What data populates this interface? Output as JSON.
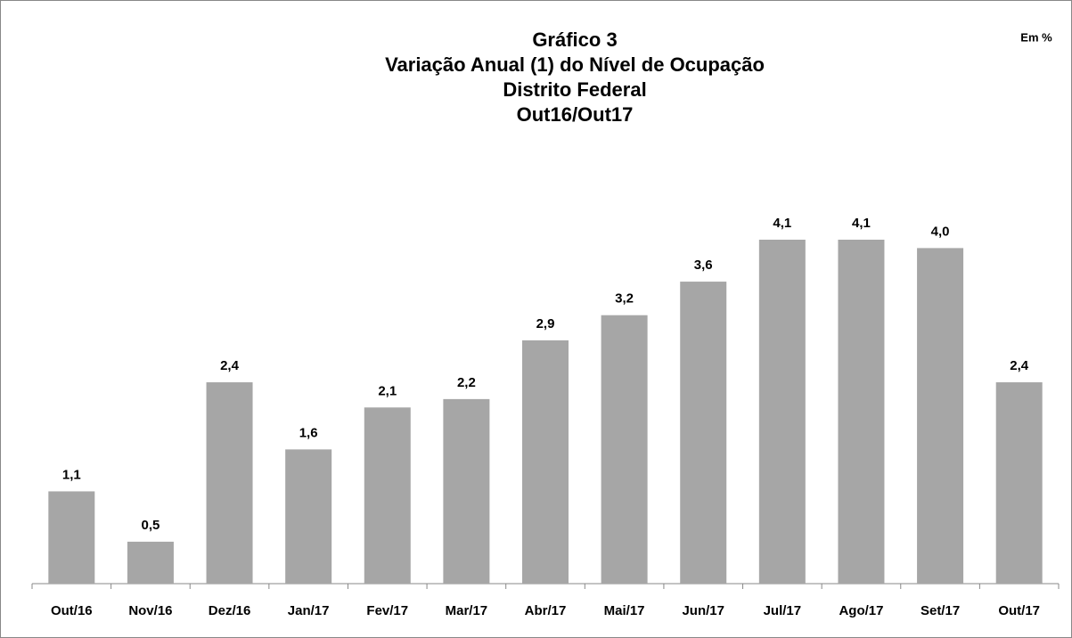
{
  "chart_data": {
    "type": "bar",
    "title": [
      "Gráfico 3",
      "Variação Anual  (1) do Nível de Ocupação",
      "Distrito Federal",
      "Out16/Out17"
    ],
    "annotation": "Em %",
    "categories": [
      "Out/16",
      "Nov/16",
      "Dez/16",
      "Jan/17",
      "Fev/17",
      "Mar/17",
      "Abr/17",
      "Mai/17",
      "Jun/17",
      "Jul/17",
      "Ago/17",
      "Set/17",
      "Out/17"
    ],
    "values": [
      1.1,
      0.5,
      2.4,
      1.6,
      2.1,
      2.2,
      2.9,
      3.2,
      3.6,
      4.1,
      4.1,
      4.0,
      2.4
    ],
    "value_labels": [
      "1,1",
      "0,5",
      "2,4",
      "1,6",
      "2,1",
      "2,2",
      "2,9",
      "3,2",
      "3,6",
      "4,1",
      "4,1",
      "4,0",
      "2,4"
    ],
    "color": "#a6a6a6"
  }
}
